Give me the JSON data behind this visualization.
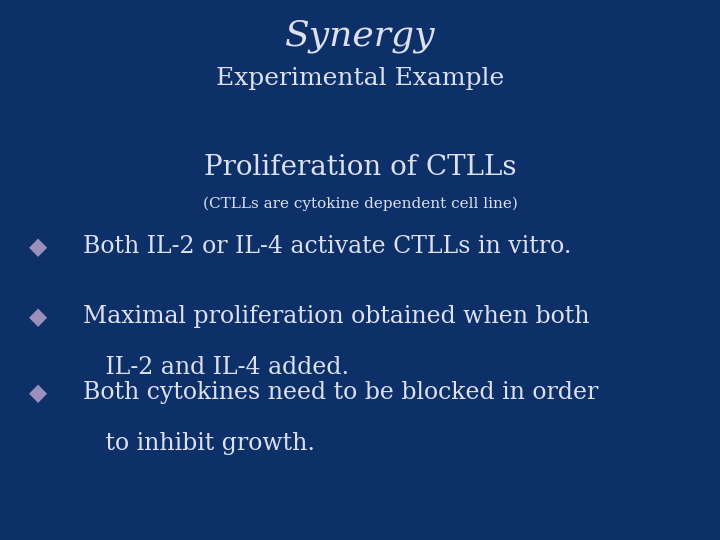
{
  "background_color": "#0e3068",
  "title_text": "Synergy",
  "subtitle_text": "Experimental Example",
  "section_title": "Proliferation of CTLLs",
  "section_subtitle": "(CTLLs are cytokine dependent cell line)",
  "bullet_color": "#9b8fbb",
  "text_color": "#dce0f0",
  "title_color": "#dce0f0",
  "bullets_line1": [
    "Both IL-2 or IL-4 activate CTLLs in vitro.",
    "Maximal proliferation obtained when both",
    "Both cytokines need to be blocked in order"
  ],
  "bullets_line2": [
    "",
    "   IL-2 and IL-4 added.",
    "   to inhibit growth."
  ],
  "title_fontsize": 26,
  "subtitle_fontsize": 18,
  "section_title_fontsize": 20,
  "section_subtitle_fontsize": 11,
  "bullet_fontsize": 17
}
